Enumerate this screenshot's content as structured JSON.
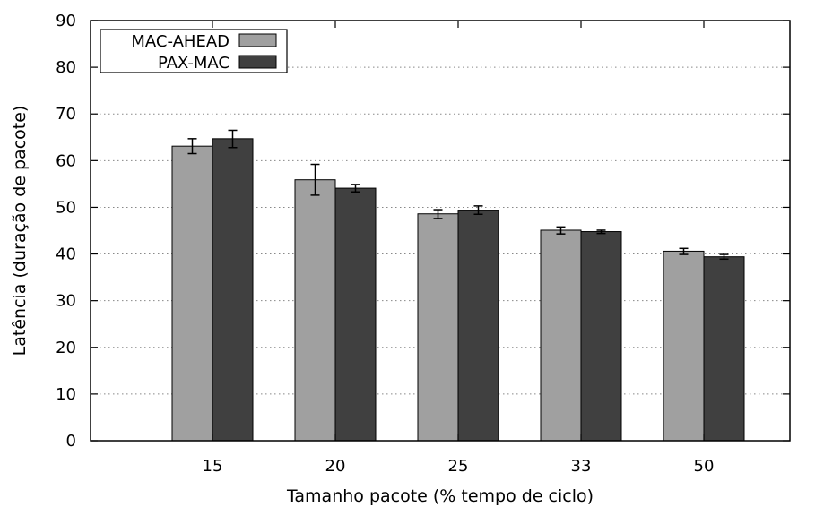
{
  "chart_data": {
    "type": "bar",
    "title": "",
    "xlabel": "Tamanho pacote (% tempo de ciclo)",
    "ylabel": "Latência (duração de pacote)",
    "categories": [
      "15",
      "20",
      "25",
      "33",
      "50"
    ],
    "ylim": [
      0,
      90
    ],
    "yticks": [
      "0",
      "10",
      "20",
      "30",
      "40",
      "50",
      "60",
      "70",
      "80",
      "90"
    ],
    "grid": "horizontal dotted",
    "legend_position": "top-left",
    "series": [
      {
        "name": "MAC-AHEAD",
        "color": "#a0a0a0",
        "values": [
          63.1,
          55.9,
          48.6,
          45.1,
          40.6
        ],
        "error_low": [
          61.5,
          52.6,
          47.6,
          44.3,
          39.9
        ],
        "error_high": [
          64.7,
          59.2,
          49.5,
          45.8,
          41.2
        ]
      },
      {
        "name": "PAX-MAC",
        "color": "#404040",
        "values": [
          64.7,
          54.1,
          49.4,
          44.8,
          39.4
        ],
        "error_low": [
          62.8,
          53.3,
          48.5,
          44.4,
          38.9
        ],
        "error_high": [
          66.5,
          54.9,
          50.3,
          45.1,
          39.9
        ]
      }
    ]
  }
}
